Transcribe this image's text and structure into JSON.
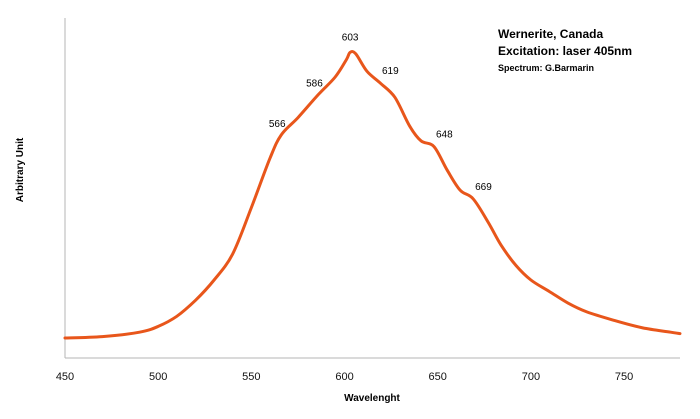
{
  "chart_data": {
    "type": "line",
    "title": [
      "Wernerite, Canada",
      "Excitation: laser 405nm"
    ],
    "subtitle": "Spectrum: G.Barmarin",
    "xlabel": "Wavelenght",
    "ylabel": "Arbitrary Unit",
    "xlim": [
      450,
      780
    ],
    "ylim": [
      0,
      1
    ],
    "xticks": [
      450,
      500,
      550,
      600,
      650,
      700,
      750
    ],
    "grid": false,
    "legend": "none",
    "line_color": "#e8561b",
    "series": [
      {
        "x": [
          450,
          470,
          490,
          500,
          510,
          520,
          530,
          540,
          550,
          560,
          566,
          575,
          586,
          595,
          601,
          603,
          606,
          612,
          619,
          627,
          635,
          641,
          648,
          655,
          662,
          669,
          677,
          684,
          692,
          700,
          710,
          720,
          730,
          745,
          760,
          775,
          780
        ],
        "y": [
          0.0,
          0.005,
          0.02,
          0.04,
          0.075,
          0.13,
          0.2,
          0.29,
          0.45,
          0.62,
          0.7,
          0.76,
          0.84,
          0.9,
          0.96,
          0.985,
          0.98,
          0.92,
          0.88,
          0.83,
          0.73,
          0.68,
          0.66,
          0.58,
          0.51,
          0.48,
          0.4,
          0.32,
          0.25,
          0.2,
          0.16,
          0.12,
          0.09,
          0.06,
          0.035,
          0.02,
          0.015
        ]
      }
    ],
    "annotations": [
      {
        "label": "566",
        "x": 566,
        "y": 0.7
      },
      {
        "label": "586",
        "x": 586,
        "y": 0.84
      },
      {
        "label": "603",
        "x": 603,
        "y": 0.985
      },
      {
        "label": "619",
        "x": 619,
        "y": 0.88
      },
      {
        "label": "648",
        "x": 648,
        "y": 0.66
      },
      {
        "label": "669",
        "x": 669,
        "y": 0.48
      }
    ]
  }
}
